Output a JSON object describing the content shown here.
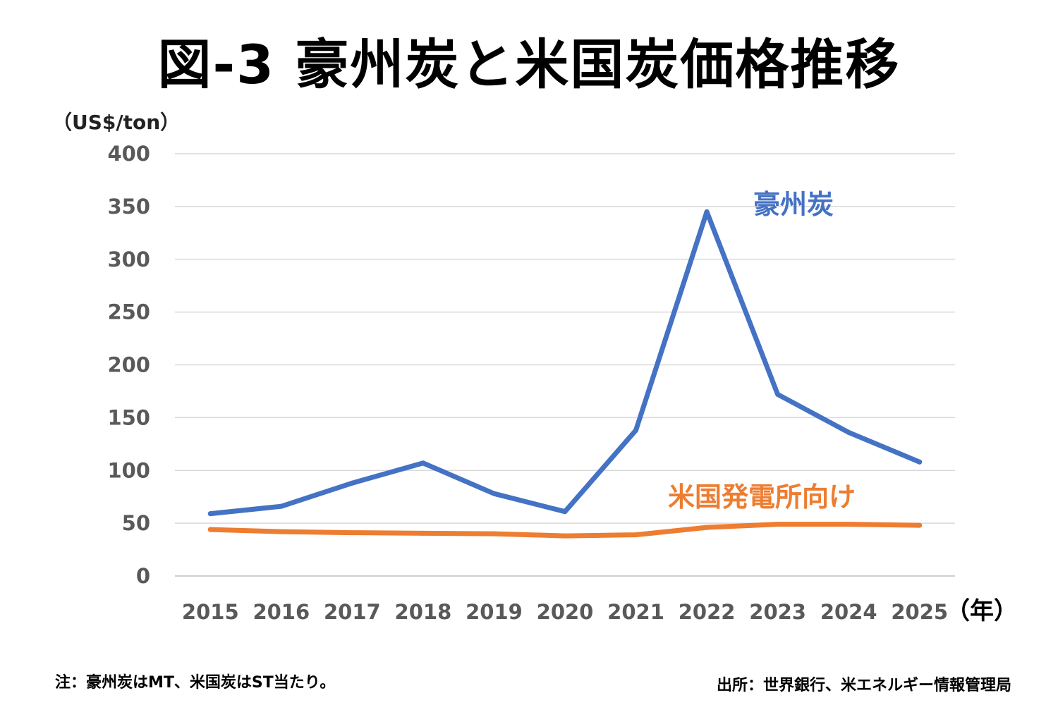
{
  "title": "図-3 豪州炭と米国炭価格推移",
  "unit_label": "（US$/ton）",
  "footnote": "注：豪州炭はMT、米国炭はST当たり。",
  "source": "出所：世界銀行、米エネルギー情報管理局",
  "chart_data": {
    "type": "line",
    "title": "図-3 豪州炭と米国炭価格推移",
    "xlabel": "（年）",
    "ylabel": "（US$/ton）",
    "ylim": [
      0,
      400
    ],
    "yticks": [
      0,
      50,
      100,
      150,
      200,
      250,
      300,
      350,
      400
    ],
    "grid": true,
    "categories": [
      "2015",
      "2016",
      "2017",
      "2018",
      "2019",
      "2020",
      "2021",
      "2022",
      "2023",
      "2024",
      "2025"
    ],
    "series": [
      {
        "name": "豪州炭",
        "color": "#4472C4",
        "values": [
          59,
          66,
          88,
          107,
          78,
          61,
          138,
          345,
          172,
          136,
          108
        ]
      },
      {
        "name": "米国発電所向け",
        "color": "#ED7D31",
        "values": [
          44,
          42,
          41,
          40.5,
          40,
          38,
          39,
          46,
          49,
          49,
          48
        ]
      }
    ]
  }
}
